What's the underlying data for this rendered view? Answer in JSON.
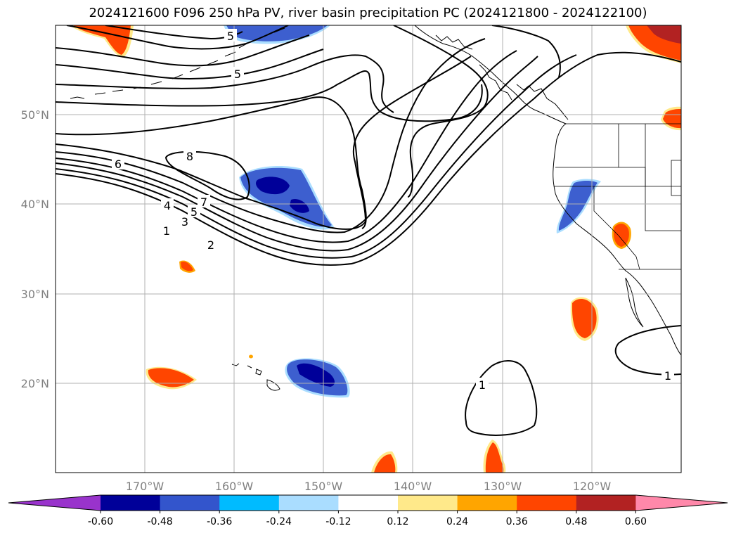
{
  "title": "2024121600 F096 250 hPa PV, river basin precipitation PC (2024121800 - 2024122100)",
  "map": {
    "lat_ticks": [
      {
        "label": "50°N",
        "lat": 50
      },
      {
        "label": "40°N",
        "lat": 40
      },
      {
        "label": "30°N",
        "lat": 30
      },
      {
        "label": "20°N",
        "lat": 20
      }
    ],
    "lon_ticks": [
      {
        "label": "170°W",
        "lon": -170
      },
      {
        "label": "160°W",
        "lon": -160
      },
      {
        "label": "150°W",
        "lon": -150
      },
      {
        "label": "140°W",
        "lon": -140
      },
      {
        "label": "130°W",
        "lon": -130
      },
      {
        "label": "120°W",
        "lon": -120
      }
    ],
    "extent": {
      "lon_min": -180,
      "lon_max": -110,
      "lat_min": 10,
      "lat_max": 60
    },
    "pv_contour_labels": [
      "8",
      "7",
      "6",
      "5",
      "5",
      "5",
      "4",
      "3",
      "2",
      "1",
      "1",
      "1"
    ],
    "grid": true
  },
  "colorbar": {
    "levels": [
      "-0.60",
      "-0.48",
      "-0.36",
      "-0.24",
      "-0.12",
      "0.12",
      "0.24",
      "0.36",
      "0.48",
      "0.60"
    ],
    "colors": [
      "#9933cc",
      "#000099",
      "#3355cc",
      "#00bbff",
      "#aaddff",
      "#ffffff",
      "#ffe98a",
      "#ffa500",
      "#ff4500",
      "#b22222",
      "#ff88aa"
    ],
    "extend": "both"
  }
}
